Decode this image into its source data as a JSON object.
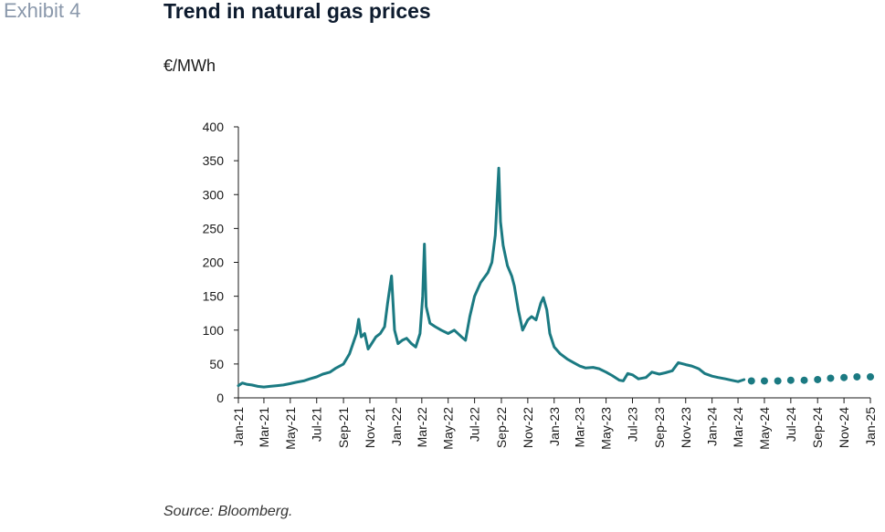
{
  "exhibit_label": "Exhibit 4",
  "title": "Trend in natural gas prices",
  "unit_label": "€/MWh",
  "source": "Source: Bloomberg.",
  "colors": {
    "series": "#1b7a82",
    "axis": "#1a1a1a",
    "title": "#0d1b2e",
    "exhibit": "#8a98ab"
  },
  "chart_data": {
    "type": "line",
    "ylabel": "€/MWh",
    "ylim": [
      0,
      400
    ],
    "y_ticks": [
      0,
      50,
      100,
      150,
      200,
      250,
      300,
      350,
      400
    ],
    "x_range": [
      "2021-01",
      "2025-01"
    ],
    "x_ticks": [
      "Jan-21",
      "Mar-21",
      "May-21",
      "Jul-21",
      "Sep-21",
      "Nov-21",
      "Jan-22",
      "Mar-22",
      "May-22",
      "Jul-22",
      "Sep-22",
      "Nov-22",
      "Jan-23",
      "Mar-23",
      "May-23",
      "Jul-23",
      "Sep-23",
      "Nov-23",
      "Jan-24",
      "Mar-24",
      "May-24",
      "Jul-24",
      "Sep-24",
      "Nov-24",
      "Jan-25"
    ],
    "grid": false,
    "series": [
      {
        "style": "line",
        "points": [
          [
            "2021-01-01",
            18
          ],
          [
            "2021-01-10",
            22
          ],
          [
            "2021-01-20",
            20
          ],
          [
            "2021-02-01",
            19
          ],
          [
            "2021-02-15",
            17
          ],
          [
            "2021-03-01",
            16
          ],
          [
            "2021-03-15",
            17
          ],
          [
            "2021-04-01",
            18
          ],
          [
            "2021-04-15",
            19
          ],
          [
            "2021-05-01",
            21
          ],
          [
            "2021-05-15",
            23
          ],
          [
            "2021-06-01",
            25
          ],
          [
            "2021-06-15",
            28
          ],
          [
            "2021-07-01",
            31
          ],
          [
            "2021-07-15",
            35
          ],
          [
            "2021-08-01",
            38
          ],
          [
            "2021-08-15",
            44
          ],
          [
            "2021-09-01",
            50
          ],
          [
            "2021-09-15",
            65
          ],
          [
            "2021-10-01",
            95
          ],
          [
            "2021-10-06",
            116
          ],
          [
            "2021-10-12",
            90
          ],
          [
            "2021-10-20",
            95
          ],
          [
            "2021-10-28",
            72
          ],
          [
            "2021-11-05",
            80
          ],
          [
            "2021-11-15",
            90
          ],
          [
            "2021-11-25",
            95
          ],
          [
            "2021-12-05",
            105
          ],
          [
            "2021-12-12",
            140
          ],
          [
            "2021-12-21",
            180
          ],
          [
            "2021-12-28",
            100
          ],
          [
            "2022-01-05",
            80
          ],
          [
            "2022-01-15",
            85
          ],
          [
            "2022-01-25",
            88
          ],
          [
            "2022-02-05",
            80
          ],
          [
            "2022-02-15",
            75
          ],
          [
            "2022-02-25",
            95
          ],
          [
            "2022-03-03",
            150
          ],
          [
            "2022-03-07",
            227
          ],
          [
            "2022-03-11",
            135
          ],
          [
            "2022-03-20",
            110
          ],
          [
            "2022-04-01",
            105
          ],
          [
            "2022-04-15",
            100
          ],
          [
            "2022-05-01",
            95
          ],
          [
            "2022-05-15",
            100
          ],
          [
            "2022-06-01",
            90
          ],
          [
            "2022-06-10",
            85
          ],
          [
            "2022-06-20",
            120
          ],
          [
            "2022-07-01",
            150
          ],
          [
            "2022-07-15",
            170
          ],
          [
            "2022-08-01",
            185
          ],
          [
            "2022-08-10",
            200
          ],
          [
            "2022-08-18",
            240
          ],
          [
            "2022-08-26",
            339
          ],
          [
            "2022-08-30",
            260
          ],
          [
            "2022-09-05",
            225
          ],
          [
            "2022-09-15",
            195
          ],
          [
            "2022-09-25",
            180
          ],
          [
            "2022-10-01",
            165
          ],
          [
            "2022-10-10",
            130
          ],
          [
            "2022-10-20",
            100
          ],
          [
            "2022-11-01",
            115
          ],
          [
            "2022-11-10",
            120
          ],
          [
            "2022-11-20",
            115
          ],
          [
            "2022-12-01",
            140
          ],
          [
            "2022-12-07",
            148
          ],
          [
            "2022-12-15",
            130
          ],
          [
            "2022-12-22",
            95
          ],
          [
            "2023-01-01",
            75
          ],
          [
            "2023-01-15",
            65
          ],
          [
            "2023-02-01",
            57
          ],
          [
            "2023-02-15",
            52
          ],
          [
            "2023-03-01",
            47
          ],
          [
            "2023-03-15",
            44
          ],
          [
            "2023-04-01",
            45
          ],
          [
            "2023-04-15",
            43
          ],
          [
            "2023-05-01",
            38
          ],
          [
            "2023-05-15",
            33
          ],
          [
            "2023-06-01",
            26
          ],
          [
            "2023-06-10",
            25
          ],
          [
            "2023-06-20",
            36
          ],
          [
            "2023-07-01",
            34
          ],
          [
            "2023-07-15",
            28
          ],
          [
            "2023-08-01",
            30
          ],
          [
            "2023-08-15",
            38
          ],
          [
            "2023-09-01",
            35
          ],
          [
            "2023-09-15",
            37
          ],
          [
            "2023-10-01",
            40
          ],
          [
            "2023-10-15",
            52
          ],
          [
            "2023-11-01",
            49
          ],
          [
            "2023-11-15",
            47
          ],
          [
            "2023-12-01",
            43
          ],
          [
            "2023-12-15",
            36
          ],
          [
            "2024-01-01",
            32
          ],
          [
            "2024-01-15",
            30
          ],
          [
            "2024-02-01",
            28
          ],
          [
            "2024-02-15",
            26
          ],
          [
            "2024-03-01",
            24
          ],
          [
            "2024-03-15",
            27
          ]
        ]
      },
      {
        "style": "dots",
        "points": [
          [
            "2024-04-01",
            25
          ],
          [
            "2024-05-01",
            25
          ],
          [
            "2024-06-01",
            25
          ],
          [
            "2024-07-01",
            26
          ],
          [
            "2024-08-01",
            26
          ],
          [
            "2024-09-01",
            27
          ],
          [
            "2024-10-01",
            29
          ],
          [
            "2024-11-01",
            30
          ],
          [
            "2024-12-01",
            31
          ],
          [
            "2025-01-01",
            31
          ]
        ]
      }
    ]
  }
}
